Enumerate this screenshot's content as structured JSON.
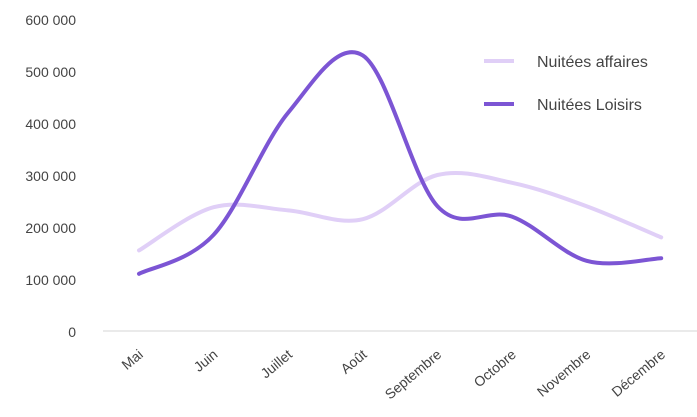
{
  "chart_data": {
    "type": "line",
    "categories": [
      "Mai",
      "Juin",
      "Juillet",
      "Août",
      "Septembre",
      "Octobre",
      "Novembre",
      "Décembre"
    ],
    "series": [
      {
        "name": "Nuitées affaires",
        "color": "#e0cff7",
        "values": [
          155000,
          238000,
          232000,
          215000,
          300000,
          285000,
          240000,
          180000
        ]
      },
      {
        "name": "Nuitées Loisirs",
        "color": "#7c55d4",
        "values": [
          110000,
          185000,
          420000,
          530000,
          240000,
          220000,
          135000,
          140000
        ]
      }
    ],
    "y_ticks": [
      "0",
      "100 000",
      "200 000",
      "300 000",
      "400 000",
      "500 000",
      "600 000"
    ],
    "ylim": [
      0,
      600000
    ],
    "grid": false,
    "legend_position": "top-right",
    "smooth": true
  }
}
